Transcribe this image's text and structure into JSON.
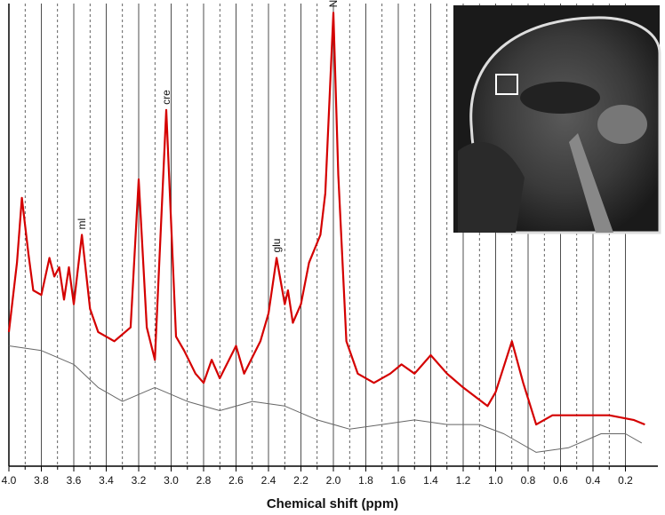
{
  "chart_data": {
    "type": "line",
    "xlabel": "Chemical shift (ppm)",
    "xlim": [
      4.0,
      0.0
    ],
    "ylim": [
      0,
      100
    ],
    "xticks": [
      {
        "value": 4,
        "label": "4.0"
      },
      3.8,
      3.6,
      3.4,
      3.2,
      {
        "value": 3,
        "label": "3.0"
      },
      2.8,
      2.6,
      2.4,
      2.2,
      {
        "value": 2,
        "label": "2.0"
      },
      1.8,
      1.6,
      1.4,
      1.2,
      {
        "value": 1,
        "label": "1.0"
      },
      0.8,
      0.6,
      0.4,
      0.2
    ],
    "grid": true,
    "minor_grid": true,
    "series": [
      {
        "color": "#d40000",
        "x": [
          4.0,
          3.95,
          3.92,
          3.88,
          3.85,
          3.8,
          3.75,
          3.72,
          3.69,
          3.66,
          3.63,
          3.6,
          3.55,
          3.5,
          3.45,
          3.35,
          3.25,
          3.2,
          3.15,
          3.1,
          3.03,
          2.97,
          2.92,
          2.85,
          2.8,
          2.75,
          2.7,
          2.6,
          2.55,
          2.45,
          2.4,
          2.35,
          2.3,
          2.28,
          2.25,
          2.2,
          2.15,
          2.08,
          2.05,
          2.0,
          1.97,
          1.92,
          1.85,
          1.75,
          1.65,
          1.58,
          1.5,
          1.4,
          1.3,
          1.2,
          1.05,
          1.0,
          0.9,
          0.83,
          0.75,
          0.65,
          0.5,
          0.3,
          0.15,
          0.08
        ],
        "values": [
          29,
          44,
          58,
          46,
          38,
          37,
          45,
          41,
          43,
          36,
          43,
          35,
          50,
          34,
          29,
          27,
          30,
          62,
          30,
          23,
          77,
          28,
          25,
          20,
          18,
          23,
          19,
          26,
          20,
          27,
          33,
          45,
          35,
          38,
          31,
          35,
          44,
          50,
          59,
          98,
          63,
          27,
          20,
          18,
          20,
          22,
          20,
          24,
          20,
          17,
          13,
          16,
          27,
          18,
          9,
          11,
          11,
          11,
          10,
          9
        ]
      },
      {
        "color": "#666666",
        "x": [
          4.0,
          3.8,
          3.6,
          3.45,
          3.3,
          3.1,
          2.9,
          2.7,
          2.5,
          2.3,
          2.1,
          1.9,
          1.7,
          1.5,
          1.3,
          1.1,
          0.95,
          0.75,
          0.55,
          0.35,
          0.2,
          0.1
        ],
        "values": [
          26,
          25,
          22,
          17,
          14,
          17,
          14,
          12,
          14,
          13,
          10,
          8,
          9,
          10,
          9,
          9,
          7,
          3,
          4,
          7,
          7,
          5
        ]
      }
    ],
    "annotations": [
      {
        "text": "NAA",
        "x": 2.0,
        "y": 98
      },
      {
        "text": "cre",
        "x": 3.03,
        "y": 77
      },
      {
        "text": "glu",
        "x": 2.35,
        "y": 45
      },
      {
        "text": "ml",
        "x": 3.55,
        "y": 50
      }
    ]
  }
}
